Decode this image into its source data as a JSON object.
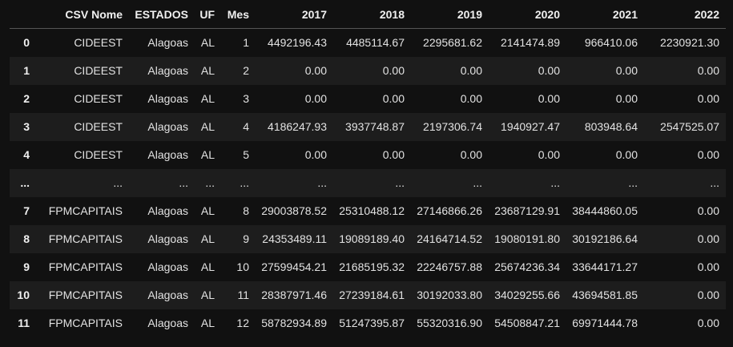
{
  "table": {
    "columns": [
      "",
      "CSV Nome",
      "ESTADOS",
      "UF",
      "Mes",
      "2017",
      "2018",
      "2019",
      "2020",
      "2021",
      "2022"
    ],
    "rows": [
      [
        "0",
        "CIDEEST",
        "Alagoas",
        "AL",
        "1",
        "4492196.43",
        "4485114.67",
        "2295681.62",
        "2141474.89",
        "966410.06",
        "2230921.30"
      ],
      [
        "1",
        "CIDEEST",
        "Alagoas",
        "AL",
        "2",
        "0.00",
        "0.00",
        "0.00",
        "0.00",
        "0.00",
        "0.00"
      ],
      [
        "2",
        "CIDEEST",
        "Alagoas",
        "AL",
        "3",
        "0.00",
        "0.00",
        "0.00",
        "0.00",
        "0.00",
        "0.00"
      ],
      [
        "3",
        "CIDEEST",
        "Alagoas",
        "AL",
        "4",
        "4186247.93",
        "3937748.87",
        "2197306.74",
        "1940927.47",
        "803948.64",
        "2547525.07"
      ],
      [
        "4",
        "CIDEEST",
        "Alagoas",
        "AL",
        "5",
        "0.00",
        "0.00",
        "0.00",
        "0.00",
        "0.00",
        "0.00"
      ],
      [
        "...",
        "...",
        "...",
        "...",
        "...",
        "...",
        "...",
        "...",
        "...",
        "...",
        "..."
      ],
      [
        "7",
        "FPMCAPITAIS",
        "Alagoas",
        "AL",
        "8",
        "29003878.52",
        "25310488.12",
        "27146866.26",
        "23687129.91",
        "38444860.05",
        "0.00"
      ],
      [
        "8",
        "FPMCAPITAIS",
        "Alagoas",
        "AL",
        "9",
        "24353489.11",
        "19089189.40",
        "24164714.52",
        "19080191.80",
        "30192186.64",
        "0.00"
      ],
      [
        "9",
        "FPMCAPITAIS",
        "Alagoas",
        "AL",
        "10",
        "27599454.21",
        "21685195.32",
        "22246757.88",
        "25674236.34",
        "33644171.27",
        "0.00"
      ],
      [
        "10",
        "FPMCAPITAIS",
        "Alagoas",
        "AL",
        "11",
        "28387971.46",
        "27239184.61",
        "30192033.80",
        "34029255.66",
        "43694581.85",
        "0.00"
      ],
      [
        "11",
        "FPMCAPITAIS",
        "Alagoas",
        "AL",
        "12",
        "58782934.89",
        "51247395.87",
        "55320316.90",
        "54508847.21",
        "69971444.78",
        "0.00"
      ]
    ]
  }
}
